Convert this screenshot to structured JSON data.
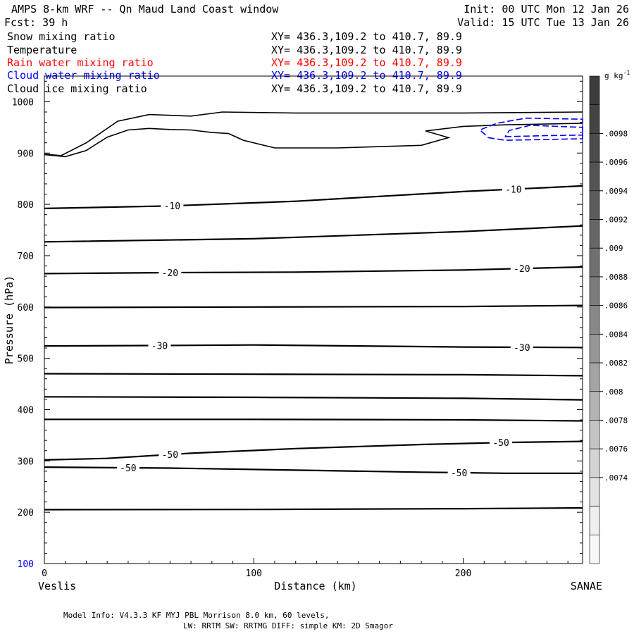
{
  "header": {
    "title": "AMPS 8-km WRF -- Qn Maud Land Coast window",
    "init": "Init: 00 UTC Mon 12 Jan 26",
    "fcst": "Fcst:   39 h",
    "valid": "Valid: 15 UTC Tue 13 Jan 26"
  },
  "fields": [
    {
      "name": "Snow mixing ratio",
      "xy": "XY= 436.3,109.2 to 410.7, 89.9",
      "color": "#000000"
    },
    {
      "name": "Temperature",
      "xy": "XY= 436.3,109.2 to 410.7, 89.9",
      "color": "#000000"
    },
    {
      "name": "Rain water mixing ratio",
      "xy": "XY= 436.3,109.2 to 410.7, 89.9",
      "color": "#ff0000"
    },
    {
      "name": "Cloud water mixing ratio",
      "xy": "XY= 436.3,109.2 to 410.7, 89.9",
      "color": "#0000ff"
    },
    {
      "name": "Cloud ice mixing ratio",
      "xy": "XY= 436.3,109.2 to 410.7, 89.9",
      "color": "#000000"
    }
  ],
  "footer": {
    "line1": "Model Info: V4.3.3   KF      MYJ PBL  Morrison              8.0 km,  60 levels,",
    "line2": "LW: RRTM SW: RRTMG   DIFF: simple KM: 2D Smagor"
  },
  "chart_data": {
    "type": "cross-section contour",
    "xlabel": "Distance (km)",
    "ylabel": "Pressure (hPa)",
    "xlim": [
      0,
      257
    ],
    "ylim": [
      1050,
      100
    ],
    "xticks": [
      0,
      100,
      200
    ],
    "yticks": [
      200,
      300,
      400,
      500,
      600,
      700,
      800,
      900,
      1000
    ],
    "y_top_label": "100",
    "endpoints": {
      "left": "Veslis",
      "right": "SANAE"
    },
    "colorbar": {
      "unit": "g kg",
      "unit_exp": "-1",
      "labels": [
        ".0098",
        ".0096",
        ".0094",
        ".0092",
        ".009",
        ".0088",
        ".0086",
        ".0084",
        ".0082",
        ".008",
        ".0078",
        ".0076",
        ".0074"
      ],
      "colors": [
        "#3c3c3c",
        "#444444",
        "#4c4c4c",
        "#545454",
        "#5c5c5c",
        "#666666",
        "#707070",
        "#7c7c7c",
        "#888888",
        "#969696",
        "#a4a4a4",
        "#b4b4b4",
        "#c4c4c4",
        "#d4d4d4",
        "#e2e2e2",
        "#eeeeee",
        "#f8f8f8"
      ]
    },
    "temperature_contours": [
      {
        "points": [
          [
            0,
            205
          ],
          [
            100,
            205.5
          ],
          [
            200,
            207
          ],
          [
            257,
            208.5
          ]
        ]
      },
      {
        "points": [
          [
            0,
            288
          ],
          [
            60,
            286
          ],
          [
            120,
            282
          ],
          [
            180,
            278
          ],
          [
            220,
            276
          ],
          [
            257,
            276
          ]
        ],
        "labels": [
          {
            "x": 40,
            "text": "-50"
          },
          {
            "x": 198,
            "text": "-50"
          }
        ]
      },
      {
        "points": [
          [
            0,
            302
          ],
          [
            30,
            305
          ],
          [
            70,
            315
          ],
          [
            120,
            324
          ],
          [
            180,
            332
          ],
          [
            220,
            336
          ],
          [
            257,
            338
          ]
        ],
        "labels": [
          {
            "x": 60,
            "text": "-50"
          },
          {
            "x": 218,
            "text": "-50"
          }
        ]
      },
      {
        "points": [
          [
            0,
            381
          ],
          [
            100,
            381
          ],
          [
            200,
            380
          ],
          [
            257,
            378
          ]
        ]
      },
      {
        "points": [
          [
            0,
            425
          ],
          [
            100,
            424
          ],
          [
            200,
            422
          ],
          [
            257,
            419
          ]
        ]
      },
      {
        "points": [
          [
            0,
            470
          ],
          [
            100,
            469
          ],
          [
            200,
            468
          ],
          [
            257,
            466
          ]
        ]
      },
      {
        "points": [
          [
            0,
            524
          ],
          [
            60,
            525
          ],
          [
            100,
            526
          ],
          [
            150,
            524
          ],
          [
            200,
            522
          ],
          [
            257,
            521
          ]
        ],
        "labels": [
          {
            "x": 55,
            "text": "-30"
          },
          {
            "x": 228,
            "text": "-30"
          }
        ]
      },
      {
        "points": [
          [
            0,
            599
          ],
          [
            100,
            600
          ],
          [
            200,
            601
          ],
          [
            257,
            603
          ]
        ]
      },
      {
        "points": [
          [
            0,
            665
          ],
          [
            60,
            667
          ],
          [
            120,
            668
          ],
          [
            200,
            672
          ],
          [
            257,
            678
          ]
        ],
        "labels": [
          {
            "x": 60,
            "text": "-20"
          },
          {
            "x": 228,
            "text": "-20"
          }
        ]
      },
      {
        "points": [
          [
            0,
            727
          ],
          [
            100,
            733
          ],
          [
            200,
            747
          ],
          [
            257,
            758
          ]
        ]
      },
      {
        "points": [
          [
            0,
            792
          ],
          [
            60,
            797
          ],
          [
            120,
            806
          ],
          [
            200,
            825
          ],
          [
            257,
            836
          ]
        ],
        "labels": [
          {
            "x": 61,
            "text": "-10"
          },
          {
            "x": 224,
            "text": "-10"
          }
        ]
      }
    ],
    "snow_contours": [
      {
        "points": [
          [
            0,
            897
          ],
          [
            10,
            893
          ],
          [
            20,
            905
          ],
          [
            30,
            931
          ],
          [
            40,
            945
          ],
          [
            50,
            948
          ],
          [
            60,
            946
          ],
          [
            70,
            945
          ],
          [
            80,
            940
          ],
          [
            88,
            938
          ],
          [
            95,
            925
          ],
          [
            110,
            910
          ],
          [
            140,
            910
          ],
          [
            180,
            915
          ],
          [
            193,
            930
          ],
          [
            182,
            943
          ],
          [
            200,
            952
          ],
          [
            220,
            955
          ],
          [
            257,
            958
          ]
        ]
      },
      {
        "points": [
          [
            0,
            898
          ],
          [
            8,
            895
          ],
          [
            20,
            920
          ],
          [
            35,
            962
          ],
          [
            50,
            975
          ],
          [
            70,
            972
          ],
          [
            85,
            980
          ],
          [
            120,
            978
          ],
          [
            200,
            978
          ],
          [
            257,
            980
          ]
        ]
      }
    ],
    "cloud_water_contours": [
      {
        "points": [
          [
            212,
            930
          ],
          [
            220,
            925
          ],
          [
            235,
            926
          ],
          [
            257,
            928
          ],
          [
            257,
            966
          ],
          [
            230,
            968
          ],
          [
            216,
            958
          ],
          [
            208,
            945
          ],
          [
            212,
            930
          ]
        ]
      },
      {
        "points": [
          [
            220,
            932
          ],
          [
            240,
            934
          ],
          [
            257,
            935
          ],
          [
            257,
            950
          ],
          [
            232,
            954
          ],
          [
            222,
            944
          ],
          [
            220,
            932
          ]
        ]
      }
    ]
  }
}
